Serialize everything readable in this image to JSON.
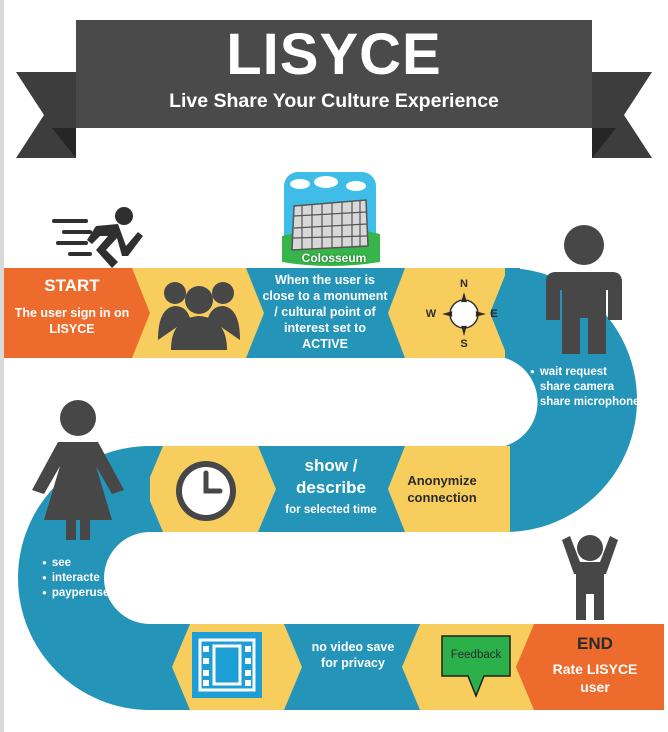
{
  "banner": {
    "title": "LISYCE",
    "subtitle": "Live Share Your Culture Experience"
  },
  "steps": {
    "start": {
      "heading": "START",
      "text_line1": "The user sign in on",
      "text_line2": "LISYCE"
    },
    "active": {
      "line1": "When the user is",
      "line2": "close to a monument",
      "line3": "/  cultural point of",
      "line4": "interest  set to",
      "line5": "ACTIVE"
    },
    "colosseum_label": "Colosseum",
    "compass": {
      "n": "N",
      "s": "S",
      "e": "E",
      "w": "W"
    },
    "user_actions": [
      "wait request",
      "share camera",
      "share microphone"
    ],
    "show": {
      "line1": "show /",
      "line2": "describe",
      "line3": "for selected time"
    },
    "anonymize": {
      "line1": "Anonymize",
      "line2": "connection"
    },
    "viewer_actions": [
      "see",
      "interacte",
      "payperuse"
    ],
    "no_video": {
      "line1": "no video save",
      "line2": "for privacy"
    },
    "feedback": "Feedback",
    "end": {
      "heading": "END",
      "line1": "Rate LISYCE",
      "line2": "user"
    }
  },
  "colors": {
    "banner": "#4a4a4a",
    "banner_tail": "#3d3d3d",
    "orange": "#ec6b2d",
    "yellow": "#f7cd5e",
    "blue": "#2494b9",
    "dark_icon": "#474747",
    "feedback_green": "#2bb04a"
  },
  "icons": [
    "runner-icon",
    "group-icon",
    "colosseum-icon",
    "compass-icon",
    "man-icon",
    "woman-icon",
    "clock-icon",
    "film-icon",
    "feedback-bubble-icon",
    "cheering-man-icon"
  ]
}
